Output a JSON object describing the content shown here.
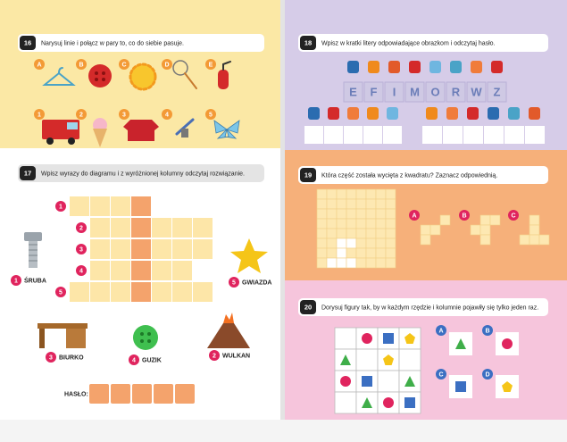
{
  "exercises": [
    {
      "number": "16",
      "instruction": "Narysuj linie i połącz w pary to, co do siebie pasuje.",
      "top_labels": [
        "A",
        "B",
        "C",
        "D",
        "E"
      ],
      "bottom_labels": [
        "1",
        "2",
        "3",
        "4",
        "5"
      ]
    },
    {
      "number": "17",
      "instruction": "Wpisz wyrazy do diagramu i z wyróżnionej kolumny odczytaj rozwiązanie.",
      "row_numbers": [
        "1",
        "2",
        "3",
        "4",
        "5"
      ],
      "words": [
        {
          "number": "1",
          "label": "ŚRUBA"
        },
        {
          "number": "5",
          "label": "GWIAZDA"
        },
        {
          "number": "3",
          "label": "BIURKO"
        },
        {
          "number": "4",
          "label": "GUZIK"
        },
        {
          "number": "2",
          "label": "WULKAN"
        }
      ],
      "answer_label": "HASŁO:"
    },
    {
      "number": "18",
      "instruction": "Wpisz w kratki litery odpowiadające obrazkom i odczytaj hasło.",
      "letters": [
        "E",
        "F",
        "I",
        "M",
        "O",
        "R",
        "W",
        "Z"
      ]
    },
    {
      "number": "19",
      "instruction": "Która część została wycięta z kwadratu? Zaznacz odpowiednią.",
      "options": [
        "A",
        "B",
        "C"
      ]
    },
    {
      "number": "20",
      "instruction": "Dorysuj figury tak, by w każdym rzędzie i kolumnie pojawiły się tylko jeden raz.",
      "options": [
        "A",
        "B",
        "C",
        "D"
      ]
    }
  ]
}
